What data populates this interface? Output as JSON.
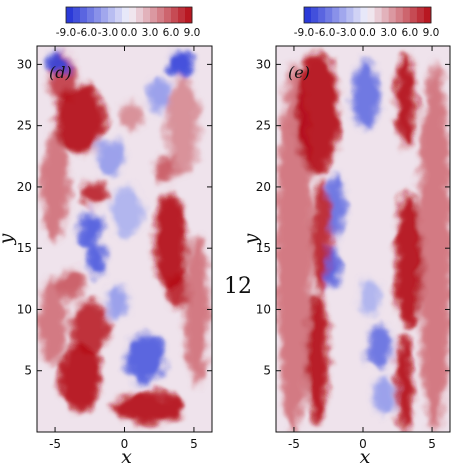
{
  "page_number": "12",
  "colorbar": {
    "tick_labels": [
      "-9.0",
      "-6.0",
      "-3.0",
      "0.0",
      "3.0",
      "6.0",
      "9.0"
    ],
    "range": [
      -9.0,
      9.0
    ],
    "negative_color": "#1f2fd6",
    "zero_color": "#f3f3fb",
    "positive_color": "#b40a14"
  },
  "chart_data": [
    {
      "type": "heatmap",
      "panel_label": "(d)",
      "xlabel": "x",
      "ylabel": "y",
      "xlim": [
        -6.3,
        6.3
      ],
      "ylim": [
        0,
        31.5
      ],
      "x_ticks": [
        -5,
        0,
        5
      ],
      "x_tick_labels": [
        "-5",
        "0",
        "5"
      ],
      "y_ticks": [
        5,
        10,
        15,
        20,
        25,
        30
      ],
      "y_tick_labels": [
        "5",
        "10",
        "15",
        "20",
        "25",
        "30"
      ],
      "colorbar_range": [
        -9,
        9
      ],
      "description_of_field": "turbulent field with meandering red (positive) band on left at upper y and right at mid/lower y, blue (negative) patches in the centre",
      "blobs": [
        {
          "x": -3.2,
          "y": 25.5,
          "value": 9,
          "rx": 1.8,
          "ry": 2.8
        },
        {
          "x": -2.2,
          "y": 19.5,
          "value": 8,
          "rx": 1.0,
          "ry": 1.0
        },
        {
          "x": -4.5,
          "y": 29.0,
          "value": 7,
          "rx": 1.0,
          "ry": 2.0
        },
        {
          "x": 3.3,
          "y": 15.5,
          "value": 9,
          "rx": 1.2,
          "ry": 4.0
        },
        {
          "x": 3.8,
          "y": 11.5,
          "value": 8,
          "rx": 0.8,
          "ry": 1.4
        },
        {
          "x": -3.2,
          "y": 4.5,
          "value": 9,
          "rx": 1.5,
          "ry": 2.8
        },
        {
          "x": -2.5,
          "y": 8.5,
          "value": 8,
          "rx": 1.4,
          "ry": 2.2
        },
        {
          "x": 1.8,
          "y": 2.0,
          "value": 9,
          "rx": 2.5,
          "ry": 1.3
        },
        {
          "x": -5.0,
          "y": 20.0,
          "value": 5,
          "rx": 1.0,
          "ry": 4.5
        },
        {
          "x": 5.2,
          "y": 10.0,
          "value": 5,
          "rx": 0.9,
          "ry": 6.0
        },
        {
          "x": -5.2,
          "y": 9.0,
          "value": 5,
          "rx": 1.0,
          "ry": 3.5
        },
        {
          "x": 4.2,
          "y": 25.0,
          "value": 4,
          "rx": 1.2,
          "ry": 4.0
        },
        {
          "x": 0.5,
          "y": 25.8,
          "value": 4,
          "rx": 0.8,
          "ry": 1.2
        },
        {
          "x": -3.8,
          "y": 12.0,
          "value": 6,
          "rx": 1.0,
          "ry": 1.2
        },
        {
          "x": 3.0,
          "y": 21.5,
          "value": 6,
          "rx": 0.8,
          "ry": 1.0
        },
        {
          "x": -4.8,
          "y": 30.0,
          "value": -8,
          "rx": 0.9,
          "ry": 0.9
        },
        {
          "x": 4.0,
          "y": 30.0,
          "value": -8,
          "rx": 0.9,
          "ry": 1.0
        },
        {
          "x": -2.5,
          "y": 16.5,
          "value": -7,
          "rx": 0.8,
          "ry": 1.5
        },
        {
          "x": -2.0,
          "y": 14.0,
          "value": -7,
          "rx": 0.7,
          "ry": 1.3
        },
        {
          "x": 1.5,
          "y": 6.0,
          "value": -7,
          "rx": 1.4,
          "ry": 2.0
        },
        {
          "x": -1.0,
          "y": 22.5,
          "value": -4,
          "rx": 1.0,
          "ry": 1.5
        },
        {
          "x": 0.2,
          "y": 18.0,
          "value": -3,
          "rx": 1.2,
          "ry": 2.0
        },
        {
          "x": 2.5,
          "y": 27.5,
          "value": -4,
          "rx": 0.8,
          "ry": 1.5
        },
        {
          "x": -0.5,
          "y": 10.5,
          "value": -4,
          "rx": 0.8,
          "ry": 1.4
        }
      ]
    },
    {
      "type": "heatmap",
      "panel_label": "(e)",
      "xlabel": "x",
      "ylabel": "",
      "xlim": [
        -6.3,
        6.3
      ],
      "ylim": [
        0,
        31.5
      ],
      "x_ticks": [
        -5,
        0,
        5
      ],
      "x_tick_labels": [
        "-5",
        "0",
        "5"
      ],
      "y_ticks": [
        5,
        10,
        15,
        20,
        25,
        30
      ],
      "y_tick_labels": [
        "5",
        "10",
        "15",
        "20",
        "25",
        "30"
      ],
      "colorbar_range": [
        -9,
        9
      ],
      "description_of_field": "two nearly straight vertical red (positive) bands near x=-3 and x=+3 spanning all y, weak blue patches between them",
      "blobs": [
        {
          "x": -3.3,
          "y": 26.0,
          "value": 9,
          "rx": 1.6,
          "ry": 5.0
        },
        {
          "x": -3.0,
          "y": 16.0,
          "value": 8,
          "rx": 0.7,
          "ry": 4.5
        },
        {
          "x": -3.3,
          "y": 6.0,
          "value": 9,
          "rx": 0.8,
          "ry": 5.5
        },
        {
          "x": 3.1,
          "y": 27.0,
          "value": 9,
          "rx": 0.7,
          "ry": 4.0
        },
        {
          "x": 3.3,
          "y": 14.0,
          "value": 9,
          "rx": 1.0,
          "ry": 5.5
        },
        {
          "x": 3.0,
          "y": 4.0,
          "value": 9,
          "rx": 0.6,
          "ry": 4.0
        },
        {
          "x": -5.0,
          "y": 15.0,
          "value": 5,
          "rx": 1.3,
          "ry": 15.0
        },
        {
          "x": 5.2,
          "y": 15.0,
          "value": 5,
          "rx": 1.2,
          "ry": 15.0
        },
        {
          "x": 0.2,
          "y": 27.5,
          "value": -6,
          "rx": 1.0,
          "ry": 2.8
        },
        {
          "x": -2.0,
          "y": 18.5,
          "value": -6,
          "rx": 0.7,
          "ry": 2.5
        },
        {
          "x": -2.3,
          "y": 13.5,
          "value": -7,
          "rx": 0.6,
          "ry": 1.8
        },
        {
          "x": 1.2,
          "y": 7.0,
          "value": -6,
          "rx": 0.9,
          "ry": 1.8
        },
        {
          "x": 1.5,
          "y": 3.0,
          "value": -4,
          "rx": 0.8,
          "ry": 1.5
        },
        {
          "x": 0.5,
          "y": 11.0,
          "value": -3,
          "rx": 0.8,
          "ry": 1.5
        }
      ]
    }
  ]
}
